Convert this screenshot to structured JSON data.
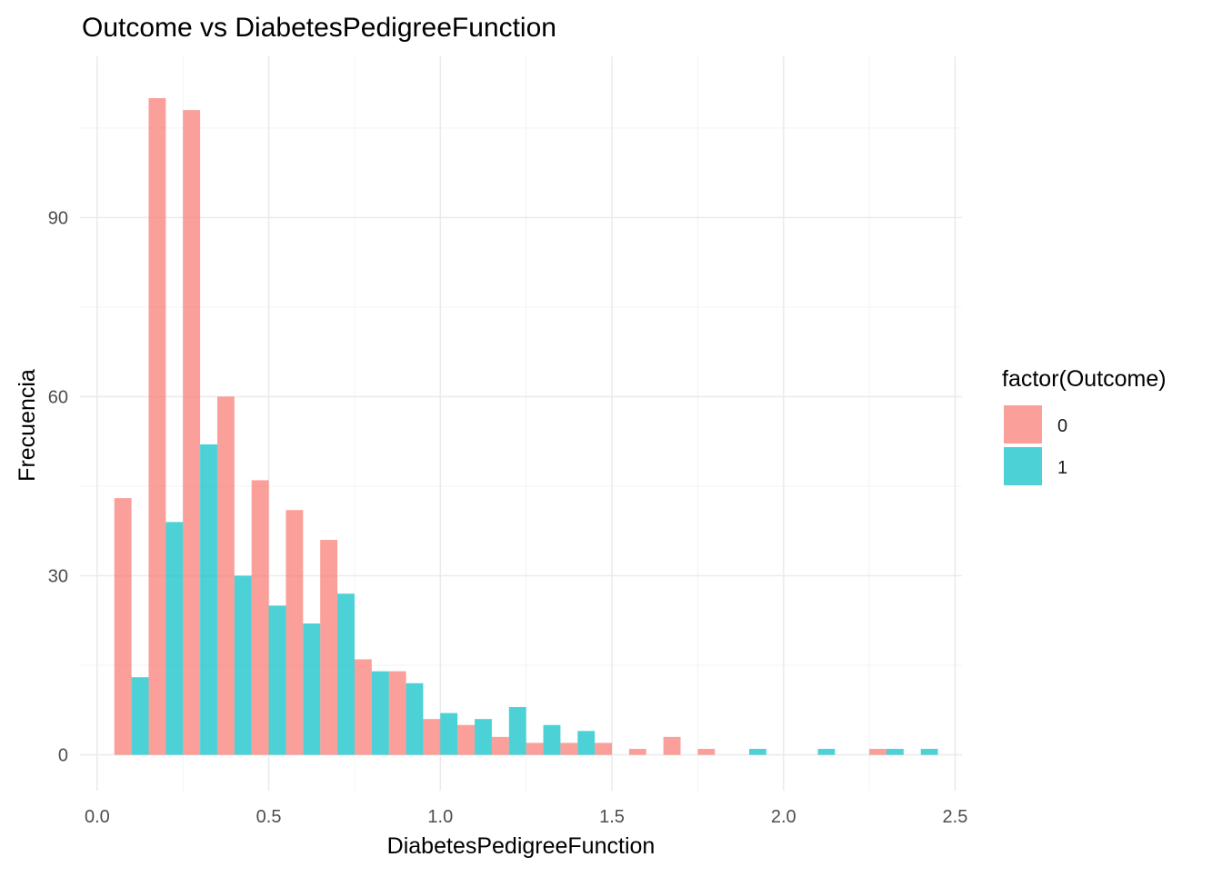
{
  "chart_data": {
    "type": "bar",
    "title": "Outcome vs DiabetesPedigreeFunction",
    "xlabel": "DiabetesPedigreeFunction",
    "ylabel": "Frecuencia",
    "xlim": [
      -0.05,
      2.52
    ],
    "ylim": [
      -6,
      117
    ],
    "x_ticks": [
      0.0,
      0.5,
      1.0,
      1.5,
      2.0,
      2.5
    ],
    "x_tick_labels": [
      "0.0",
      "0.5",
      "1.0",
      "1.5",
      "2.0",
      "2.5"
    ],
    "y_ticks": [
      0,
      30,
      60,
      90
    ],
    "y_tick_labels": [
      "0",
      "30",
      "60",
      "90"
    ],
    "x_minor_ticks": [
      0.25,
      0.75,
      1.25,
      1.75,
      2.25
    ],
    "y_minor_ticks": [
      15,
      45,
      75,
      105
    ],
    "bin_width": 0.1,
    "position": "dodge",
    "bin_centers": [
      0.1,
      0.2,
      0.3,
      0.4,
      0.5,
      0.6,
      0.7,
      0.8,
      0.9,
      1.0,
      1.1,
      1.2,
      1.3,
      1.4,
      1.5,
      1.6,
      1.7,
      1.8,
      1.9,
      2.0,
      2.1,
      2.2,
      2.3,
      2.4
    ],
    "grid": true,
    "legend": {
      "title": "factor(Outcome)",
      "position": "right",
      "entries": [
        "0",
        "1"
      ]
    },
    "series": [
      {
        "name": "0",
        "color": "#F8766D",
        "alpha": 0.7,
        "values": [
          43,
          110,
          108,
          60,
          46,
          41,
          36,
          16,
          14,
          6,
          5,
          3,
          2,
          2,
          2,
          1,
          3,
          1,
          0,
          0,
          0,
          0,
          1,
          0
        ]
      },
      {
        "name": "1",
        "color": "#00BFC4",
        "alpha": 0.7,
        "values": [
          13,
          39,
          52,
          30,
          25,
          22,
          27,
          14,
          12,
          7,
          6,
          8,
          5,
          4,
          0,
          0,
          0,
          0,
          1,
          0,
          1,
          0,
          1,
          1
        ]
      }
    ]
  }
}
